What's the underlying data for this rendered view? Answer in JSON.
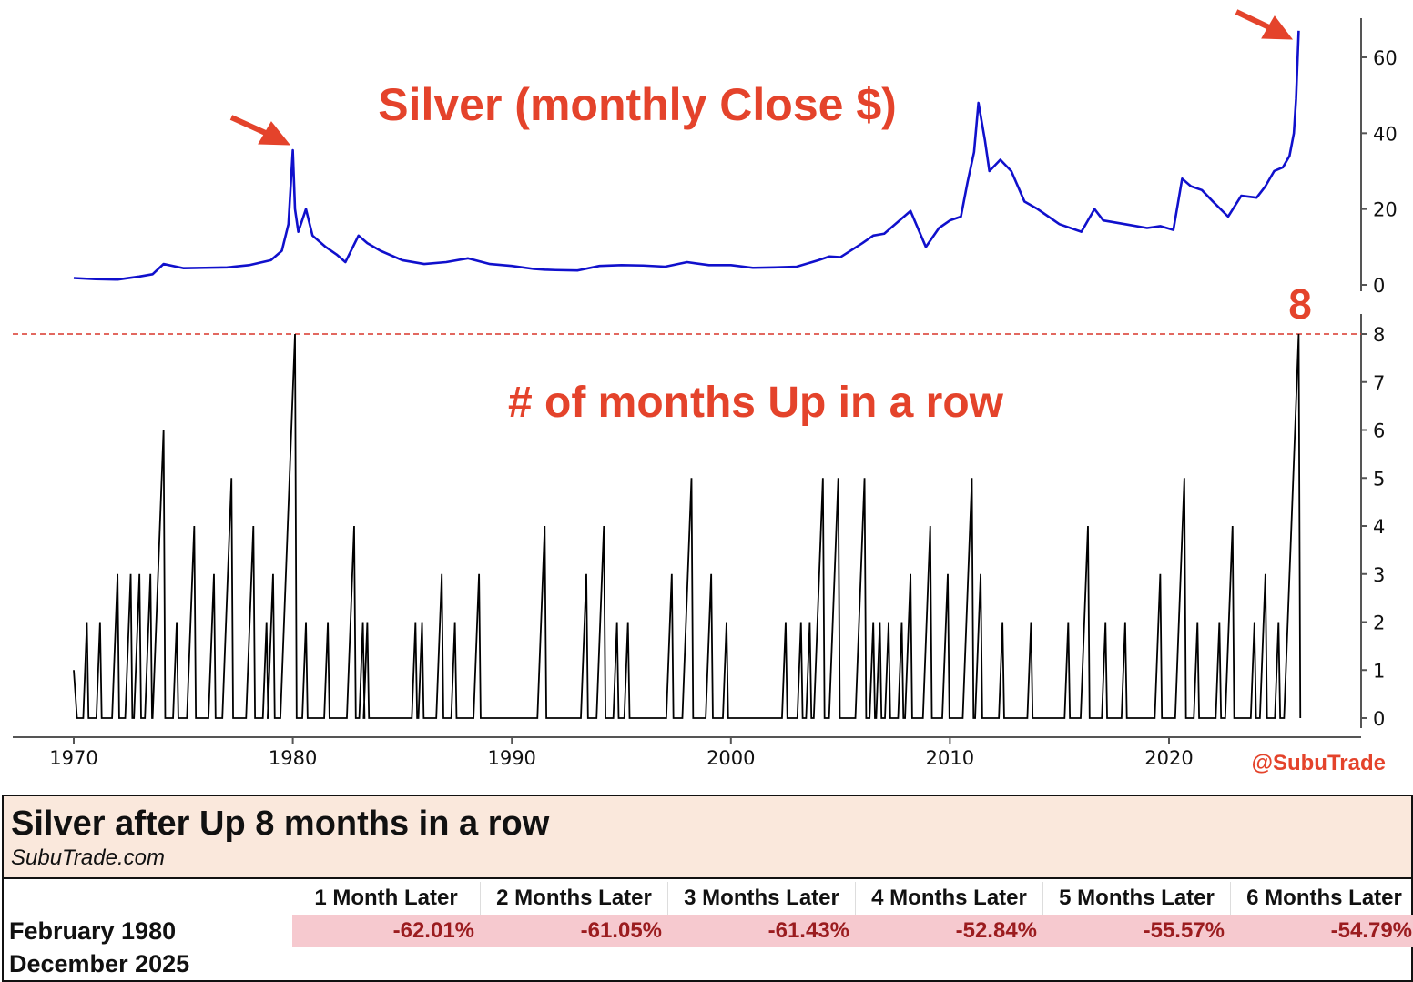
{
  "chart_data": [
    {
      "type": "line",
      "title": "Silver (monthly Close $)",
      "ylim": [
        0,
        67
      ],
      "yticks": [
        0,
        20,
        40,
        60
      ],
      "color": "#1010cc",
      "x": [
        1970,
        1971,
        1972,
        1973,
        1973.6,
        1974.1,
        1975,
        1976,
        1977,
        1978,
        1979,
        1979.5,
        1979.8,
        1980.0,
        1980.1,
        1980.25,
        1980.6,
        1980.9,
        1981.5,
        1982,
        1982.4,
        1983.0,
        1983.4,
        1984,
        1985,
        1986,
        1987,
        1988,
        1989,
        1990,
        1991,
        1991.5,
        1992,
        1993,
        1994,
        1995,
        1996,
        1997,
        1998,
        1999,
        2000,
        2001,
        2002,
        2003,
        2004,
        2004.5,
        2005,
        2006,
        2006.5,
        2007,
        2008.2,
        2008.9,
        2009.5,
        2010,
        2010.5,
        2010.8,
        2011.1,
        2011.3,
        2011.6,
        2011.8,
        2012.3,
        2012.8,
        2013.4,
        2014,
        2015,
        2016,
        2016.6,
        2017,
        2018,
        2019,
        2019.6,
        2020.2,
        2020.6,
        2021,
        2021.5,
        2022,
        2022.7,
        2023.3,
        2024,
        2024.4,
        2024.8,
        2025.2,
        2025.5,
        2025.7,
        2025.8,
        2025.92
      ],
      "y": [
        1.8,
        1.5,
        1.4,
        2.2,
        2.8,
        5.5,
        4.4,
        4.5,
        4.6,
        5.2,
        6.5,
        9,
        16,
        35.5,
        20,
        14,
        20,
        13,
        10,
        8,
        6,
        13,
        11,
        9,
        6.5,
        5.5,
        6,
        7,
        5.5,
        5,
        4.2,
        4,
        3.9,
        3.8,
        5,
        5.2,
        5.1,
        4.8,
        6,
        5.2,
        5.2,
        4.5,
        4.6,
        4.8,
        6.5,
        7.5,
        7.3,
        11,
        13,
        13.5,
        19.5,
        10,
        15,
        17,
        18,
        27,
        35,
        48,
        38,
        30,
        33,
        30,
        22,
        20,
        16,
        14,
        20,
        17,
        16,
        15,
        15.5,
        14.5,
        28,
        26,
        25,
        22,
        18,
        23.5,
        23,
        26,
        30,
        31,
        34,
        40,
        49,
        67
      ]
    },
    {
      "type": "line",
      "title": "# of months Up in a row",
      "ylim": [
        0,
        8
      ],
      "yticks": [
        0,
        1,
        2,
        3,
        4,
        5,
        6,
        7,
        8
      ],
      "color": "#000000",
      "reference_line": 8,
      "reference_label": "8",
      "peaks": [
        [
          1970.6,
          2
        ],
        [
          1971.2,
          2
        ],
        [
          1972.0,
          3
        ],
        [
          1972.6,
          3
        ],
        [
          1973.0,
          3
        ],
        [
          1973.5,
          3
        ],
        [
          1974.1,
          6
        ],
        [
          1974.7,
          2
        ],
        [
          1975.5,
          4
        ],
        [
          1976.4,
          3
        ],
        [
          1977.2,
          5
        ],
        [
          1978.2,
          4
        ],
        [
          1978.8,
          2
        ],
        [
          1979.1,
          3
        ],
        [
          1980.1,
          8
        ],
        [
          1980.6,
          2
        ],
        [
          1981.6,
          2
        ],
        [
          1982.8,
          4
        ],
        [
          1983.2,
          2
        ],
        [
          1983.4,
          2
        ],
        [
          1985.6,
          2
        ],
        [
          1985.9,
          2
        ],
        [
          1986.8,
          3
        ],
        [
          1987.4,
          2
        ],
        [
          1988.5,
          3
        ],
        [
          1991.5,
          4
        ],
        [
          1993.4,
          3
        ],
        [
          1994.2,
          4
        ],
        [
          1994.8,
          2
        ],
        [
          1995.3,
          2
        ],
        [
          1997.3,
          3
        ],
        [
          1998.2,
          5
        ],
        [
          1999.1,
          3
        ],
        [
          1999.8,
          2
        ],
        [
          2002.5,
          2
        ],
        [
          2003.2,
          2
        ],
        [
          2003.6,
          2
        ],
        [
          2004.2,
          5
        ],
        [
          2004.9,
          5
        ],
        [
          2006.1,
          5
        ],
        [
          2006.5,
          2
        ],
        [
          2006.8,
          2
        ],
        [
          2007.2,
          2
        ],
        [
          2007.8,
          2
        ],
        [
          2008.2,
          3
        ],
        [
          2009.1,
          4
        ],
        [
          2009.9,
          3
        ],
        [
          2011.0,
          5
        ],
        [
          2011.4,
          3
        ],
        [
          2012.4,
          2
        ],
        [
          2013.7,
          2
        ],
        [
          2015.4,
          2
        ],
        [
          2016.3,
          4
        ],
        [
          2017.1,
          2
        ],
        [
          2018.0,
          2
        ],
        [
          2019.6,
          3
        ],
        [
          2020.7,
          5
        ],
        [
          2021.3,
          2
        ],
        [
          2022.3,
          2
        ],
        [
          2022.9,
          4
        ],
        [
          2023.9,
          2
        ],
        [
          2024.4,
          3
        ],
        [
          2025.0,
          2
        ],
        [
          2025.92,
          8
        ]
      ]
    }
  ],
  "xaxis": {
    "ticks": [
      1970,
      1980,
      1990,
      2000,
      2010,
      2020
    ],
    "xlim": [
      1967.3,
      2028.5
    ]
  },
  "annotations": {
    "price_title": "Silver (monthly Close $)",
    "streak_title": "# of months Up in a row",
    "current_value": "8",
    "watermark": "@SubuTrade"
  },
  "colors": {
    "accent": "#e4432b",
    "price_line": "#1010cc"
  },
  "table": {
    "title": "Silver after Up 8 months in a row",
    "subtitle": "SubuTrade.com",
    "columns": [
      "1 Month Later",
      "2 Months Later",
      "3 Months Later",
      "4 Months Later",
      "5 Months Later",
      "6 Months Later"
    ],
    "rows": [
      {
        "label": "February 1980",
        "values": [
          "-62.01%",
          "-61.05%",
          "-61.43%",
          "-52.84%",
          "-55.57%",
          "-54.79%"
        ]
      },
      {
        "label": "December 2025",
        "values": []
      }
    ]
  }
}
